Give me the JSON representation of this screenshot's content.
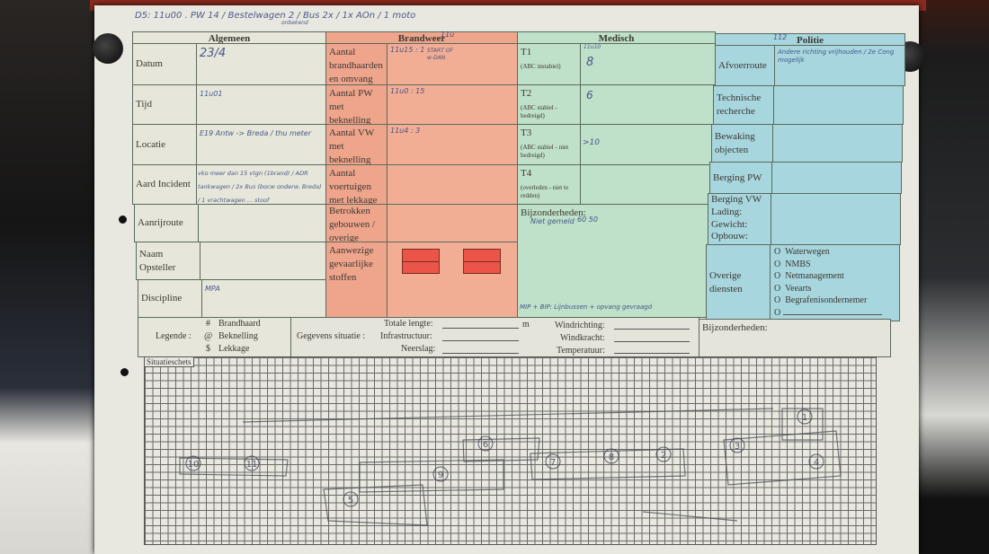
{
  "top_note": "D5: 11u00 . PW 14 / Bestelwagen 2 / Bus 2x / 1x AOn / 1 moto",
  "top_note_sub": "onbekend",
  "sections": {
    "algemeen": "Algemeen",
    "brandweer": "Brandweer",
    "medisch": "Medisch",
    "politie": "Politie"
  },
  "algemeen": {
    "rows": [
      {
        "label": "Datum",
        "value": "23/4"
      },
      {
        "label": "Tijd",
        "value": "11u01"
      },
      {
        "label": "Locatie",
        "value": "E19 Antw -> Breda / thu meter"
      },
      {
        "label": "Aard Incident",
        "value": "vko meer dan 15 vtgn (1brand) / ADR tankwagen / 2x Bus (bocw onderw. Breda) / 1 vrachtwagen ... stoof"
      },
      {
        "label": "Aanrijroute",
        "value": ""
      },
      {
        "label": "Naam Opsteller",
        "value": ""
      },
      {
        "label": "Discipline",
        "value": "MPA"
      }
    ]
  },
  "brandweer": {
    "header_note": "11u",
    "rows": [
      {
        "label": "Aantal brandhaarden en omvang",
        "value": "11u15 : 1",
        "value2": "START OF w-DAN"
      },
      {
        "label": "Aantal PW met beknelling",
        "value": "11u0 : 15",
        "value2": ""
      },
      {
        "label": "Aantal VW met beknelling",
        "value": "11u4 : 3",
        "value2": ""
      },
      {
        "label": "Aantal voertuigen met lekkage",
        "value": "",
        "value2": ""
      },
      {
        "label": "Betrokken gebouwen / overige object",
        "value": "",
        "value2": ""
      },
      {
        "label": "Aanwezige gevaarlijke stoffen",
        "value": "",
        "value2": ""
      }
    ],
    "placard_color": "#ea5548"
  },
  "medisch": {
    "rows": [
      {
        "label": "T1",
        "sub": "(ABC instabiel)",
        "time": "11u10",
        "value": "8"
      },
      {
        "label": "T2",
        "sub": "(ABC stabiel - bedreigd)",
        "time": "",
        "value": "6"
      },
      {
        "label": "T3",
        "sub": "(ABC stabiel - niet bedreigd)",
        "time": "",
        "value": ">10"
      },
      {
        "label": "T4",
        "sub": "(overleden - niet te redden)",
        "time": "",
        "value": ""
      }
    ],
    "bijzonderheden_label": "Bijzonderheden:",
    "bijzonderheden_value": "Niet gemeld",
    "bijzonderheden_value2": "60 50",
    "bijzonderheden_note": "MIP + BIP: Lijnbussen + opvang gevraagd"
  },
  "politie": {
    "header_note": "112",
    "rows": [
      {
        "label": "Afvoerroute",
        "value": "Andere richting vrijhouden / 2e Cong mogelijk"
      },
      {
        "label": "Technische recherche",
        "value": ""
      },
      {
        "label": "Bewaking objecten",
        "value": ""
      },
      {
        "label": "Berging PW",
        "value": ""
      },
      {
        "label": "Berging VW Lading: Gewicht: Opbouw:",
        "value": ""
      }
    ],
    "overige_label": "Overige diensten",
    "overige": [
      "Waterwegen",
      "NMBS",
      "Netmanagement",
      "Veearts",
      "Begrafenisondernemer",
      ""
    ],
    "bullet": "O"
  },
  "legend": {
    "title": "Legende :",
    "items": [
      {
        "symbol": "#",
        "label": "Brandhaard"
      },
      {
        "symbol": "@",
        "label": "Beknelling"
      },
      {
        "symbol": "$",
        "label": "Lekkage"
      }
    ]
  },
  "situatie": {
    "title": "Gegevens situatie :",
    "totale_lengte": "Totale lengte:",
    "unit": "m",
    "infrastructuur": "Infrastructuur:",
    "neerslag": "Neerslag:",
    "windrichting": "Windrichting:",
    "windkracht": "Windkracht:",
    "temperatuur": "Temperatuur:",
    "bijzonderheden": "Bijzonderheden:"
  },
  "sketch": {
    "label": "Situatieschets",
    "notes": [
      "10",
      "11",
      "5",
      "6",
      "7",
      "8",
      "2",
      "3",
      "1",
      "4",
      "9"
    ]
  }
}
